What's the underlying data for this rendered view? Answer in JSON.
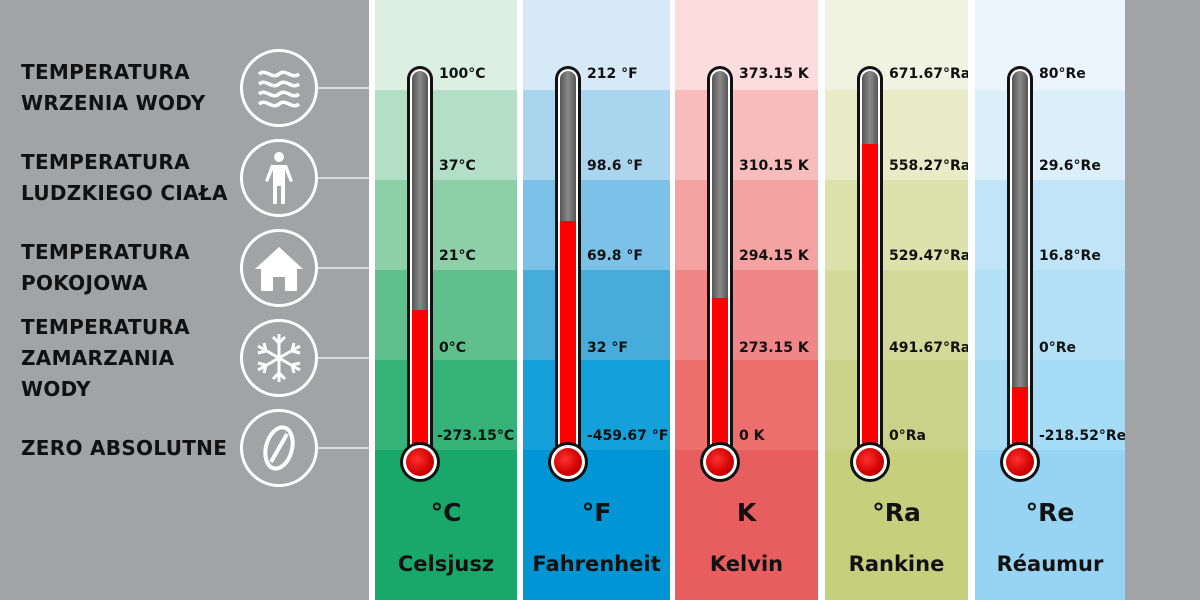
{
  "legend": [
    {
      "label": "TEMPERATURA\nWRZENIA WODY",
      "icon": "waves-icon"
    },
    {
      "label": "TEMPERATURA\nLUDZKIEGO CIAŁA",
      "icon": "person-icon"
    },
    {
      "label": "TEMPERATURA\nPOKOJOWA",
      "icon": "house-icon"
    },
    {
      "label": "TEMPERATURA\nZAMARZANIA\nWODY",
      "icon": "snowflake-icon"
    },
    {
      "label": "ZERO ABSOLUTNE",
      "icon": "zero-icon"
    }
  ],
  "scales": [
    {
      "name": "Celsjusz",
      "unit": "°C",
      "ticks": [
        "100°C",
        "37°C",
        "21°C",
        "0°C",
        "-273.15°C"
      ],
      "fill_fraction": 0.38,
      "band_colors": [
        "#dcefe3",
        "#b4dfc7",
        "#8dcfa8",
        "#60bf8c",
        "#35b277",
        "#17a86a"
      ]
    },
    {
      "name": "Fahrenheit",
      "unit": "°F",
      "ticks": [
        "212 °F",
        "98.6 °F",
        "69.8 °F",
        "32 °F",
        "-459.67 °F"
      ],
      "fill_fraction": 0.61,
      "band_colors": [
        "#d6e9f7",
        "#a9d5ee",
        "#7cc2e8",
        "#45acdc",
        "#14a0d9",
        "#0096d6"
      ]
    },
    {
      "name": "Kelvin",
      "unit": "K",
      "ticks": [
        "373.15 K",
        "310.15 K",
        "294.15 K",
        "273.15 K",
        "0 K"
      ],
      "fill_fraction": 0.41,
      "band_colors": [
        "#fcdcdc",
        "#f9bcbc",
        "#f5a3a2",
        "#f08687",
        "#ec6f6e",
        "#e85d5d"
      ]
    },
    {
      "name": "Rankine",
      "unit": "°Ra",
      "ticks": [
        "671.67°Ra",
        "558.27°Ra",
        "529.47°Ra",
        "491.67°Ra",
        "0°Ra"
      ],
      "fill_fraction": 0.81,
      "band_colors": [
        "#f1f3e2",
        "#e7ebc6",
        "#dce2ac",
        "#d3da99",
        "#c9d288",
        "#c5cf7c"
      ]
    },
    {
      "name": "Réaumur",
      "unit": "°Re",
      "ticks": [
        "80°Re",
        "29.6°Re",
        "16.8°Re",
        "0°Re",
        "-218.52°Re"
      ],
      "fill_fraction": 0.18,
      "band_colors": [
        "#eaf5fd",
        "#dbeffb",
        "#c0e5f8",
        "#b2e0f6",
        "#a6dbf5",
        "#97d4f3"
      ]
    }
  ],
  "colors": {
    "background": "#a1a3a5",
    "mercury": "#ff0000"
  }
}
